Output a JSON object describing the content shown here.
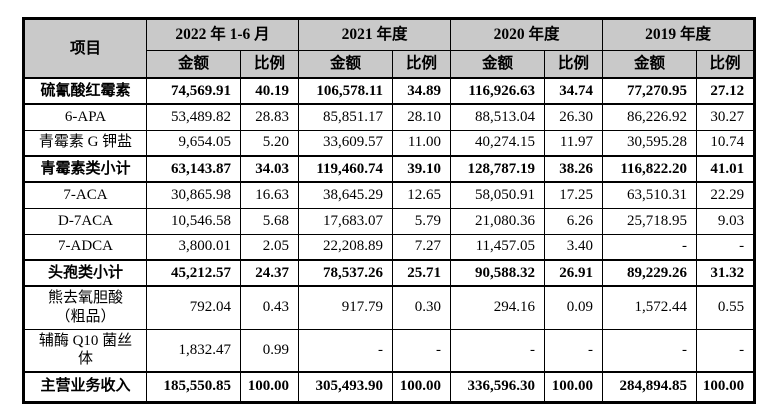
{
  "header": {
    "item_label": "项目",
    "amount_label": "金额",
    "ratio_label": "比例",
    "periods": [
      {
        "label": "2022 年 1-6 月"
      },
      {
        "label": "2021 年度"
      },
      {
        "label": "2020 年度"
      },
      {
        "label": "2019 年度"
      }
    ]
  },
  "table": {
    "rows": [
      {
        "label": "硫氰酸红霉素",
        "bold": true,
        "values": [
          "74,569.91",
          "40.19",
          "106,578.11",
          "34.89",
          "116,926.63",
          "34.74",
          "77,270.95",
          "27.12"
        ]
      },
      {
        "label": "6-APA",
        "bold": false,
        "values": [
          "53,489.82",
          "28.83",
          "85,851.17",
          "28.10",
          "88,513.04",
          "26.30",
          "86,226.92",
          "30.27"
        ]
      },
      {
        "label": "青霉素 G 钾盐",
        "bold": false,
        "values": [
          "9,654.05",
          "5.20",
          "33,609.57",
          "11.00",
          "40,274.15",
          "11.97",
          "30,595.28",
          "10.74"
        ]
      },
      {
        "label": "青霉素类小计",
        "bold": true,
        "values": [
          "63,143.87",
          "34.03",
          "119,460.74",
          "39.10",
          "128,787.19",
          "38.26",
          "116,822.20",
          "41.01"
        ]
      },
      {
        "label": "7-ACA",
        "bold": false,
        "values": [
          "30,865.98",
          "16.63",
          "38,645.29",
          "12.65",
          "58,050.91",
          "17.25",
          "63,510.31",
          "22.29"
        ]
      },
      {
        "label": "D-7ACA",
        "bold": false,
        "values": [
          "10,546.58",
          "5.68",
          "17,683.07",
          "5.79",
          "21,080.36",
          "6.26",
          "25,718.95",
          "9.03"
        ]
      },
      {
        "label": "7-ADCA",
        "bold": false,
        "values": [
          "3,800.01",
          "2.05",
          "22,208.89",
          "7.27",
          "11,457.05",
          "3.40",
          "-",
          "-"
        ]
      },
      {
        "label": "头孢类小计",
        "bold": true,
        "values": [
          "45,212.57",
          "24.37",
          "78,537.26",
          "25.71",
          "90,588.32",
          "26.91",
          "89,229.26",
          "31.32"
        ]
      },
      {
        "label": "熊去氧胆酸\n（粗品）",
        "bold": false,
        "values": [
          "792.04",
          "0.43",
          "917.79",
          "0.30",
          "294.16",
          "0.09",
          "1,572.44",
          "0.55"
        ]
      },
      {
        "label": "辅酶 Q10 菌丝\n体",
        "bold": false,
        "values": [
          "1,832.47",
          "0.99",
          "-",
          "-",
          "-",
          "-",
          "-",
          "-"
        ]
      },
      {
        "label": "主营业务收入",
        "bold": true,
        "total": true,
        "values": [
          "185,550.85",
          "100.00",
          "305,493.90",
          "100.00",
          "336,596.30",
          "100.00",
          "284,894.85",
          "100.00"
        ]
      }
    ]
  },
  "colors": {
    "header_bg": "#c9c9c9",
    "border": "#000000",
    "page_bg": "#ffffff",
    "text": "#000000"
  }
}
